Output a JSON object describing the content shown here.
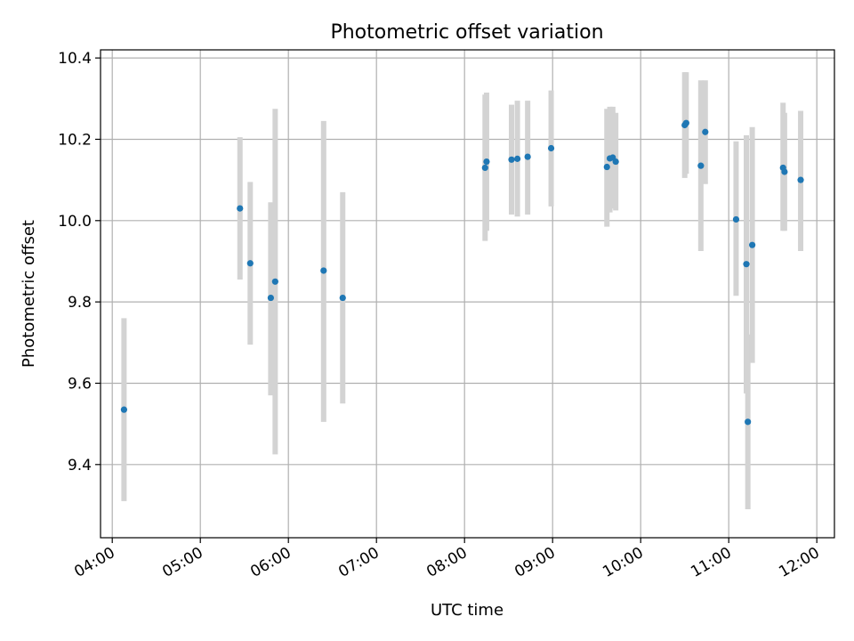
{
  "chart_data": {
    "type": "scatter",
    "title": "Photometric offset variation",
    "xlabel": "UTC time",
    "ylabel": "Photometric offset",
    "xlim": [
      "03:52",
      "12:12"
    ],
    "ylim": [
      9.22,
      10.42
    ],
    "x_ticks": [
      "04:00",
      "05:00",
      "06:00",
      "07:00",
      "08:00",
      "09:00",
      "10:00",
      "11:00",
      "12:00"
    ],
    "y_ticks": [
      9.4,
      9.6,
      9.8,
      10.0,
      10.2,
      10.4
    ],
    "grid": true,
    "colors": {
      "points": "#1f77b4",
      "errorbars": "#d3d3d3"
    },
    "points": [
      {
        "x": "04:08",
        "y": 9.535,
        "ylo": 9.31,
        "yhi": 9.76
      },
      {
        "x": "05:27",
        "y": 10.03,
        "ylo": 9.855,
        "yhi": 10.205
      },
      {
        "x": "05:34",
        "y": 9.895,
        "ylo": 9.695,
        "yhi": 10.095
      },
      {
        "x": "05:48",
        "y": 9.81,
        "ylo": 9.57,
        "yhi": 10.045
      },
      {
        "x": "05:51",
        "y": 9.85,
        "ylo": 9.425,
        "yhi": 10.275
      },
      {
        "x": "06:24",
        "y": 9.877,
        "ylo": 9.505,
        "yhi": 10.245
      },
      {
        "x": "06:37",
        "y": 9.81,
        "ylo": 9.55,
        "yhi": 10.07
      },
      {
        "x": "08:14",
        "y": 10.13,
        "ylo": 9.95,
        "yhi": 10.31
      },
      {
        "x": "08:15",
        "y": 10.145,
        "ylo": 9.975,
        "yhi": 10.315
      },
      {
        "x": "08:32",
        "y": 10.15,
        "ylo": 10.015,
        "yhi": 10.285
      },
      {
        "x": "08:36",
        "y": 10.152,
        "ylo": 10.01,
        "yhi": 10.295
      },
      {
        "x": "08:43",
        "y": 10.157,
        "ylo": 10.015,
        "yhi": 10.295
      },
      {
        "x": "08:59",
        "y": 10.178,
        "ylo": 10.035,
        "yhi": 10.32
      },
      {
        "x": "09:37",
        "y": 10.132,
        "ylo": 9.985,
        "yhi": 10.275
      },
      {
        "x": "09:39",
        "y": 10.153,
        "ylo": 10.02,
        "yhi": 10.28
      },
      {
        "x": "09:41",
        "y": 10.155,
        "ylo": 10.03,
        "yhi": 10.28
      },
      {
        "x": "09:43",
        "y": 10.145,
        "ylo": 10.025,
        "yhi": 10.265
      },
      {
        "x": "10:30",
        "y": 10.235,
        "ylo": 10.105,
        "yhi": 10.365
      },
      {
        "x": "10:31",
        "y": 10.24,
        "ylo": 10.115,
        "yhi": 10.365
      },
      {
        "x": "10:41",
        "y": 10.135,
        "ylo": 9.925,
        "yhi": 10.345
      },
      {
        "x": "10:44",
        "y": 10.218,
        "ylo": 10.09,
        "yhi": 10.345
      },
      {
        "x": "11:05",
        "y": 10.003,
        "ylo": 9.815,
        "yhi": 10.195
      },
      {
        "x": "11:12",
        "y": 9.893,
        "ylo": 9.575,
        "yhi": 10.21
      },
      {
        "x": "11:13",
        "y": 9.505,
        "ylo": 9.29,
        "yhi": 9.72
      },
      {
        "x": "11:16",
        "y": 9.94,
        "ylo": 9.65,
        "yhi": 10.23
      },
      {
        "x": "11:37",
        "y": 10.13,
        "ylo": 9.975,
        "yhi": 10.29
      },
      {
        "x": "11:38",
        "y": 10.12,
        "ylo": 9.975,
        "yhi": 10.265
      },
      {
        "x": "11:49",
        "y": 10.1,
        "ylo": 9.925,
        "yhi": 10.27
      }
    ]
  }
}
